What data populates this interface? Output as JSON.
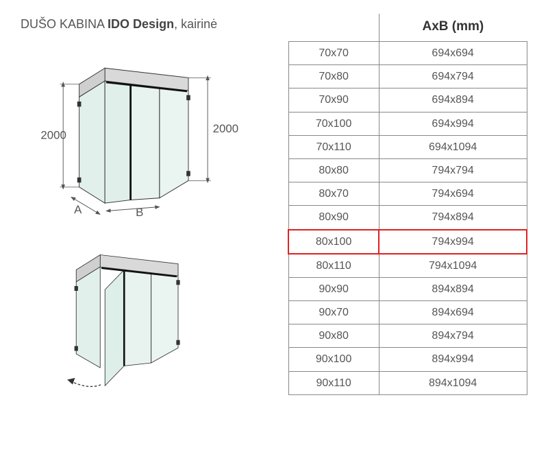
{
  "title": {
    "prefix": "DUŠO KABINA ",
    "bold": "IDO Design",
    "suffix": ", kairinė"
  },
  "diagram": {
    "left_height_label": "2000",
    "right_height_label": "2000",
    "width_a_label": "A",
    "width_b_label": "B",
    "glass_fill": "#d8ebe5",
    "wall_fill": "#d9d9d9",
    "stroke": "#333333",
    "dim_stroke": "#555555"
  },
  "table": {
    "header": {
      "spacer": "",
      "main": "AxB (mm)"
    },
    "highlight_index": 8,
    "rows": [
      {
        "nominal": "70x70",
        "actual": "694x694"
      },
      {
        "nominal": "70x80",
        "actual": "694x794"
      },
      {
        "nominal": "70x90",
        "actual": "694x894"
      },
      {
        "nominal": "70x100",
        "actual": "694x994"
      },
      {
        "nominal": "70x110",
        "actual": "694x1094"
      },
      {
        "nominal": "80x80",
        "actual": "794x794"
      },
      {
        "nominal": "80x70",
        "actual": "794x694"
      },
      {
        "nominal": "80x90",
        "actual": "794x894"
      },
      {
        "nominal": "80x100",
        "actual": "794x994"
      },
      {
        "nominal": "80x110",
        "actual": "794x1094"
      },
      {
        "nominal": "90x90",
        "actual": "894x894"
      },
      {
        "nominal": "90x70",
        "actual": "894x694"
      },
      {
        "nominal": "90x80",
        "actual": "894x794"
      },
      {
        "nominal": "90x100",
        "actual": "894x994"
      },
      {
        "nominal": "90x110",
        "actual": "894x1094"
      }
    ]
  }
}
